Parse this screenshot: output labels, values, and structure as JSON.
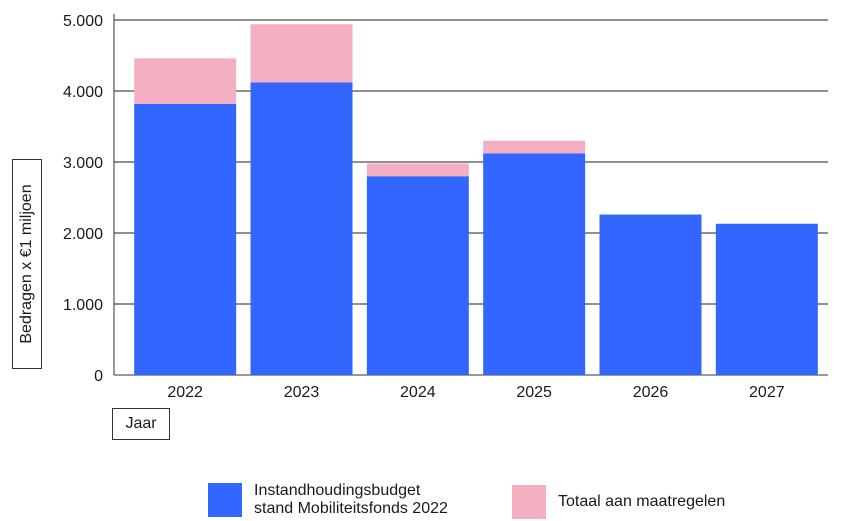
{
  "chart_data": {
    "type": "bar",
    "stacked": true,
    "categories": [
      "2022",
      "2023",
      "2024",
      "2025",
      "2026",
      "2027"
    ],
    "series": [
      {
        "name": "Instandhoudingsbudget\nstand Mobiliteitsfonds 2022",
        "color": "#3366ff",
        "values": [
          3820,
          4120,
          2800,
          3120,
          2260,
          2130
        ]
      },
      {
        "name": "Totaal aan maatregelen",
        "color": "#f4afc0",
        "values": [
          640,
          820,
          180,
          180,
          0,
          0
        ]
      }
    ],
    "title": "",
    "xlabel": "Jaar",
    "ylabel": "Bedragen x €1 miljoen",
    "ylim": [
      0,
      5000
    ],
    "yticks": [
      "0",
      "1.000",
      "2.000",
      "3.000",
      "4.000",
      "5.000"
    ],
    "grid": true,
    "legend_position": "bottom"
  }
}
